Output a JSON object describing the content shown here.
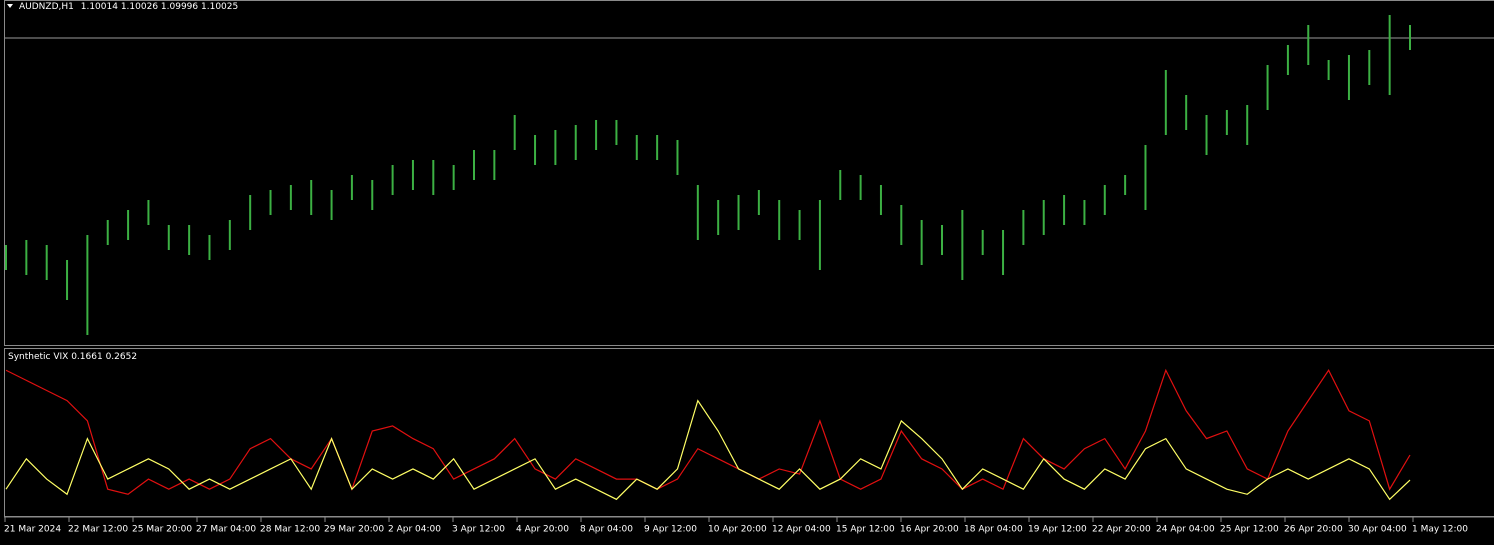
{
  "chart_data": [
    {
      "type": "hl-bar",
      "symbol": "AUDNZD,H1",
      "ohlc": [
        1.10014,
        1.10026,
        1.09996,
        1.10025
      ],
      "color": "#3cb043",
      "ylim": [
        1.0849,
        1.1019
      ],
      "high": [
        1.0899,
        1.09015,
        1.0899,
        1.08915,
        1.0904,
        1.09115,
        1.09165,
        1.09215,
        1.0909,
        1.0909,
        1.0904,
        1.09115,
        1.0924,
        1.09265,
        1.0929,
        1.09315,
        1.09265,
        1.0934,
        1.09315,
        1.0939,
        1.09415,
        1.09415,
        1.0939,
        1.09465,
        1.09465,
        1.0964,
        1.0954,
        1.09565,
        1.0959,
        1.09615,
        1.09615,
        1.0954,
        1.0954,
        1.09515,
        1.0929,
        1.09215,
        1.0924,
        1.09265,
        1.09215,
        1.09165,
        1.09215,
        1.09365,
        1.0934,
        1.0929,
        1.0919,
        1.09115,
        1.0909,
        1.09165,
        1.09065,
        1.09065,
        1.09165,
        1.09215,
        1.0924,
        1.09215,
        1.0929,
        1.0934,
        1.0949,
        1.09865,
        1.0974,
        1.0964,
        1.09665,
        1.0969,
        1.0989,
        1.0999,
        1.1009,
        1.09915,
        1.0994,
        1.09965,
        1.1014,
        1.1009
      ],
      "low": [
        1.08865,
        1.0884,
        1.08815,
        1.08715,
        1.0854,
        1.0899,
        1.09015,
        1.0909,
        1.08965,
        1.0894,
        1.08915,
        1.08965,
        1.09065,
        1.0914,
        1.09165,
        1.0914,
        1.09115,
        1.09215,
        1.09165,
        1.0924,
        1.09265,
        1.0924,
        1.09265,
        1.09315,
        1.09315,
        1.09465,
        1.0939,
        1.0939,
        1.09415,
        1.09465,
        1.0949,
        1.09415,
        1.09415,
        1.0934,
        1.09015,
        1.0904,
        1.09065,
        1.0914,
        1.09015,
        1.09015,
        1.08865,
        1.09215,
        1.09215,
        1.0914,
        1.0899,
        1.0889,
        1.0894,
        1.08815,
        1.0894,
        1.0884,
        1.0899,
        1.0904,
        1.0909,
        1.0909,
        1.0914,
        1.0924,
        1.09165,
        1.0954,
        1.09565,
        1.0944,
        1.0954,
        1.0949,
        1.09665,
        1.0984,
        1.0989,
        1.09815,
        1.09715,
        1.0979,
        1.0974,
        1.09965
      ]
    },
    {
      "type": "line",
      "title": "Synthetic VIX",
      "ylim": [
        0.04,
        0.68
      ],
      "series": [
        {
          "color": "#ffff66",
          "values": [
            0.13,
            0.25,
            0.17,
            0.11,
            0.33,
            0.17,
            0.21,
            0.25,
            0.21,
            0.13,
            0.17,
            0.13,
            0.17,
            0.21,
            0.25,
            0.13,
            0.33,
            0.13,
            0.21,
            0.17,
            0.21,
            0.17,
            0.25,
            0.13,
            0.17,
            0.21,
            0.25,
            0.13,
            0.17,
            0.13,
            0.09,
            0.17,
            0.13,
            0.21,
            0.48,
            0.36,
            0.21,
            0.17,
            0.13,
            0.21,
            0.13,
            0.17,
            0.25,
            0.21,
            0.4,
            0.33,
            0.25,
            0.13,
            0.21,
            0.17,
            0.13,
            0.25,
            0.17,
            0.13,
            0.21,
            0.17,
            0.29,
            0.33,
            0.21,
            0.17,
            0.13,
            0.11,
            0.17,
            0.21,
            0.17,
            0.21,
            0.25,
            0.21,
            0.09,
            0.1661
          ]
        },
        {
          "color": "#e01010",
          "values": [
            0.6,
            0.56,
            0.52,
            0.48,
            0.4,
            0.13,
            0.11,
            0.17,
            0.13,
            0.17,
            0.13,
            0.17,
            0.29,
            0.33,
            0.25,
            0.21,
            0.33,
            0.13,
            0.36,
            0.38,
            0.33,
            0.29,
            0.17,
            0.21,
            0.25,
            0.33,
            0.21,
            0.17,
            0.25,
            0.21,
            0.17,
            0.17,
            0.13,
            0.17,
            0.29,
            0.25,
            0.21,
            0.17,
            0.21,
            0.19,
            0.4,
            0.17,
            0.13,
            0.17,
            0.36,
            0.25,
            0.21,
            0.13,
            0.17,
            0.13,
            0.33,
            0.25,
            0.21,
            0.29,
            0.33,
            0.21,
            0.36,
            0.6,
            0.44,
            0.33,
            0.36,
            0.21,
            0.17,
            0.36,
            0.48,
            0.6,
            0.44,
            0.4,
            0.13,
            0.2652
          ]
        }
      ]
    }
  ],
  "time_axis_labels": [
    "21 Mar 2024",
    "22 Mar 12:00",
    "25 Mar 20:00",
    "27 Mar 04:00",
    "28 Mar 12:00",
    "29 Mar 20:00",
    "2 Apr 04:00",
    "3 Apr 12:00",
    "4 Apr 20:00",
    "8 Apr 04:00",
    "9 Apr 12:00",
    "10 Apr 20:00",
    "12 Apr 04:00",
    "15 Apr 12:00",
    "16 Apr 20:00",
    "18 Apr 04:00",
    "19 Apr 12:00",
    "22 Apr 20:00",
    "24 Apr 04:00",
    "25 Apr 12:00",
    "26 Apr 20:00",
    "30 Apr 04:00",
    "1 May 12:00"
  ]
}
